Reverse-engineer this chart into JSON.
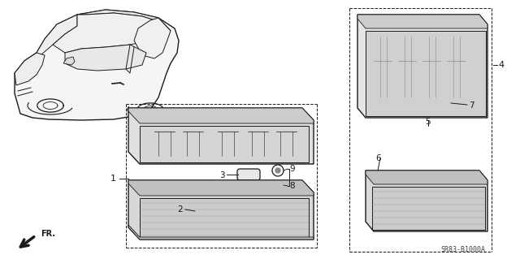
{
  "bg_color": "#ffffff",
  "line_color": "#1a1a1a",
  "gray_fill": "#d8d8d8",
  "dark_gray": "#aaaaaa",
  "part_number": "SR83-B1000A",
  "lw": 0.9,
  "label_fontsize": 8,
  "pn_fontsize": 6
}
